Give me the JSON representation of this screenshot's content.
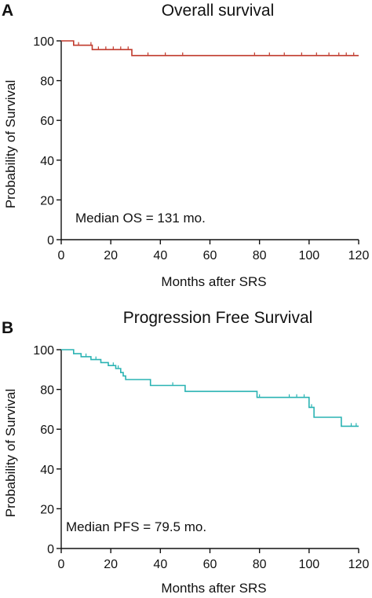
{
  "chart_data": [
    {
      "type": "line",
      "panel_label": "A",
      "title": "Overall survival",
      "xlabel": "Months after SRS",
      "ylabel": "Probability of Survival",
      "xlim": [
        0,
        120
      ],
      "ylim": [
        0,
        100
      ],
      "xticks": [
        0,
        20,
        40,
        60,
        80,
        100,
        120
      ],
      "xtick_labels": [
        "0",
        "20",
        "40",
        "60",
        "80",
        "100",
        "120"
      ],
      "yticks": [
        0,
        20,
        40,
        60,
        80,
        100
      ],
      "ytick_labels": [
        "0",
        "20",
        "40",
        "60",
        "80",
        "100"
      ],
      "annotation": "Median OS = 131 mo.",
      "color": "#c0392b",
      "series": [
        {
          "steps": [
            [
              0,
              100
            ],
            [
              5,
              100
            ],
            [
              5,
              97.8
            ],
            [
              12.5,
              97.8
            ],
            [
              12.5,
              95.6
            ],
            [
              28.5,
              95.6
            ],
            [
              28.5,
              92.6
            ],
            [
              120,
              92.6
            ]
          ],
          "censored": [
            [
              7,
              97.8
            ],
            [
              12,
              97.8
            ],
            [
              15,
              95.6
            ],
            [
              18,
              95.6
            ],
            [
              21,
              95.6
            ],
            [
              24,
              95.6
            ],
            [
              27,
              95.6
            ],
            [
              35,
              92.6
            ],
            [
              42,
              92.6
            ],
            [
              49,
              92.6
            ],
            [
              78,
              92.6
            ],
            [
              84,
              92.6
            ],
            [
              90,
              92.6
            ],
            [
              97,
              92.6
            ],
            [
              103,
              92.6
            ],
            [
              108,
              92.6
            ],
            [
              112,
              92.6
            ],
            [
              115,
              92.6
            ],
            [
              118,
              92.6
            ]
          ]
        }
      ]
    },
    {
      "type": "line",
      "panel_label": "B",
      "title": "Progression Free Survival",
      "xlabel": "Months after SRS",
      "ylabel": "Probability of Survival",
      "xlim": [
        0,
        120
      ],
      "ylim": [
        0,
        100
      ],
      "xticks": [
        0,
        20,
        40,
        60,
        80,
        100,
        120
      ],
      "xtick_labels": [
        "0",
        "20",
        "40",
        "60",
        "80",
        "100",
        "120"
      ],
      "yticks": [
        0,
        20,
        40,
        60,
        80,
        100
      ],
      "ytick_labels": [
        "0",
        "20",
        "40",
        "60",
        "80",
        "100"
      ],
      "annotation": "Median PFS = 79.5 mo.",
      "color": "#2ab3b3",
      "series": [
        {
          "steps": [
            [
              0,
              100
            ],
            [
              5,
              100
            ],
            [
              5,
              98
            ],
            [
              8,
              98
            ],
            [
              8,
              96.5
            ],
            [
              12,
              96.5
            ],
            [
              12,
              95
            ],
            [
              16,
              95
            ],
            [
              16,
              93.5
            ],
            [
              19,
              93.5
            ],
            [
              19,
              92
            ],
            [
              22,
              92
            ],
            [
              22,
              90.5
            ],
            [
              24,
              90.5
            ],
            [
              24,
              88.5
            ],
            [
              25,
              88.5
            ],
            [
              25,
              86.8
            ],
            [
              26,
              86.8
            ],
            [
              26,
              85
            ],
            [
              36,
              85
            ],
            [
              36,
              82
            ],
            [
              50,
              82
            ],
            [
              50,
              79
            ],
            [
              79,
              79
            ],
            [
              79,
              76
            ],
            [
              100,
              76
            ],
            [
              100,
              71
            ],
            [
              102,
              71
            ],
            [
              102,
              66
            ],
            [
              113,
              66
            ],
            [
              113,
              61.5
            ],
            [
              120,
              61.5
            ]
          ],
          "censored": [
            [
              10,
              96.5
            ],
            [
              14,
              95
            ],
            [
              21,
              92
            ],
            [
              23,
              90.5
            ],
            [
              45,
              82
            ],
            [
              80,
              76
            ],
            [
              92,
              76
            ],
            [
              95,
              76
            ],
            [
              98,
              76
            ],
            [
              101,
              71
            ],
            [
              117,
              61.5
            ],
            [
              119,
              61.5
            ]
          ]
        }
      ]
    }
  ]
}
